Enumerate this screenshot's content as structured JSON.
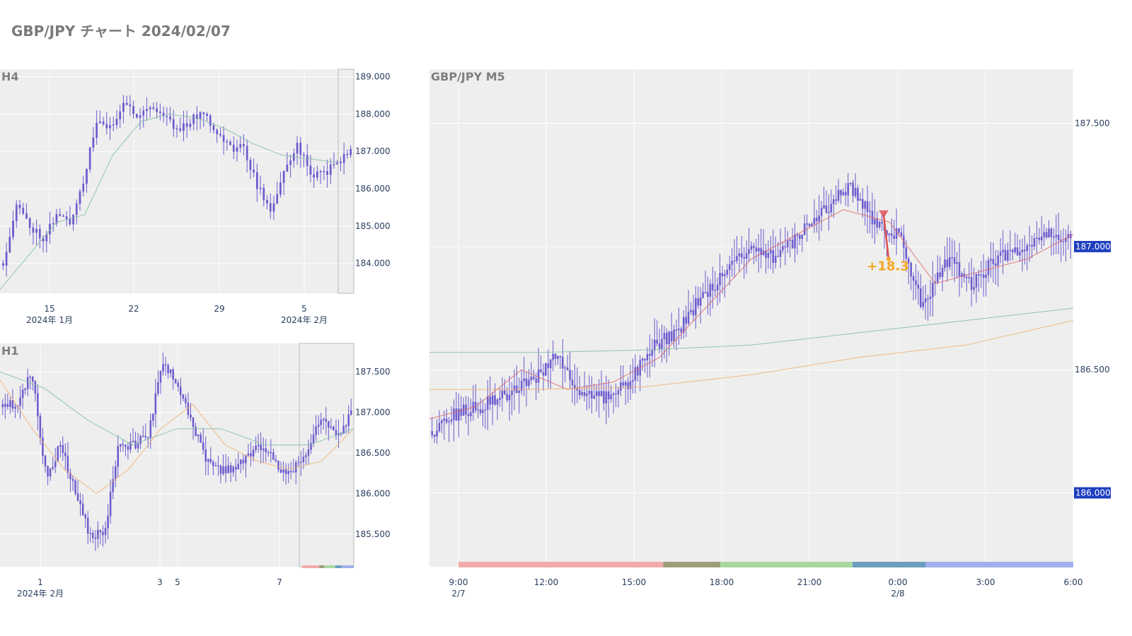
{
  "title": "GBP/JPY チャート 2024/02/07",
  "colors": {
    "candle": "#6a5acd",
    "plot_bg": "#eeeeee",
    "ma_red": "#e06666",
    "ma_green": "#7fbf9f",
    "ma_orange": "#f0b070",
    "highlight_label_bg": "#1e3fbf",
    "signal_red": "#e05050",
    "profit": "#f5a623"
  },
  "sessions": [
    "#f2aaaa",
    "#9e9e7a",
    "#a8d8a0",
    "#6c9ec0",
    "#a0b0ee"
  ],
  "chart_data": [
    {
      "type": "candlestick",
      "title": "H4",
      "ylim": [
        183.2,
        189.2
      ],
      "y_ticks": [
        "189.000",
        "188.000",
        "187.000",
        "186.000",
        "185.000",
        "184.000"
      ],
      "x_ticks": [
        {
          "label": "15",
          "sub": "2024年 1月"
        },
        {
          "label": "22",
          "sub": ""
        },
        {
          "label": "29",
          "sub": ""
        },
        {
          "label": "5",
          "sub": "2024年 2月"
        }
      ],
      "path_anchors": [
        184.0,
        185.6,
        185.0,
        184.7,
        185.3,
        185.1,
        186.2,
        187.8,
        187.6,
        188.3,
        188.0,
        188.2,
        188.0,
        187.6,
        187.8,
        188.1,
        187.5,
        187.1,
        187.1,
        186.1,
        185.4,
        186.4,
        187.2,
        186.4,
        186.4,
        186.7,
        187.0
      ],
      "ma": [
        {
          "color": "ma_green",
          "values": [
            183.3,
            184.2,
            185.1,
            185.3,
            186.9,
            187.8,
            188.0,
            187.9,
            187.6,
            187.2,
            186.9,
            186.8,
            186.7
          ]
        }
      ]
    },
    {
      "type": "candlestick",
      "title": "H1",
      "ylim": [
        185.1,
        187.85
      ],
      "y_ticks": [
        "187.500",
        "187.000",
        "186.500",
        "186.000",
        "185.500"
      ],
      "x_ticks": [
        {
          "label": "1",
          "sub": "2024年 2月"
        },
        {
          "label": "3",
          "sub": ""
        },
        {
          "label": "5",
          "sub": ""
        },
        {
          "label": "7",
          "sub": ""
        }
      ],
      "path_anchors": [
        187.1,
        187.1,
        187.5,
        186.2,
        186.6,
        186.0,
        185.5,
        185.5,
        186.6,
        186.6,
        186.7,
        187.6,
        187.4,
        186.9,
        186.4,
        186.3,
        186.3,
        186.5,
        186.6,
        186.3,
        186.3,
        186.5,
        187.0,
        186.7,
        187.0
      ],
      "ma": [
        {
          "color": "ma_green",
          "values": [
            187.5,
            187.3,
            186.9,
            186.6,
            186.8,
            186.8,
            186.6,
            186.6,
            186.8
          ]
        },
        {
          "color": "ma_orange",
          "values": [
            187.4,
            186.8,
            186.3,
            186.0,
            186.3,
            186.8,
            187.1,
            186.6,
            186.4,
            186.3,
            186.4,
            186.8
          ]
        }
      ]
    },
    {
      "type": "candlestick",
      "title": "GBP/JPY M5",
      "ylim": [
        185.7,
        187.72
      ],
      "y_ticks": [
        "187.500",
        "187.000",
        "186.500",
        "186.000"
      ],
      "highlight_labels": [
        "187.000",
        "186.000"
      ],
      "x_ticks": [
        {
          "label": "9:00",
          "sub": "2/7"
        },
        {
          "label": "12:00",
          "sub": ""
        },
        {
          "label": "15:00",
          "sub": ""
        },
        {
          "label": "18:00",
          "sub": ""
        },
        {
          "label": "21:00",
          "sub": ""
        },
        {
          "label": "0:00",
          "sub": "2/8"
        },
        {
          "label": "3:00",
          "sub": ""
        },
        {
          "label": "6:00",
          "sub": ""
        }
      ],
      "path_anchors": [
        186.25,
        186.32,
        186.35,
        186.4,
        186.45,
        186.55,
        186.42,
        186.38,
        186.45,
        186.6,
        186.65,
        186.8,
        186.9,
        187.0,
        186.95,
        187.05,
        187.15,
        187.25,
        187.1,
        187.05,
        186.75,
        186.95,
        186.85,
        186.95,
        187.0,
        187.05,
        187.05
      ],
      "ma": [
        {
          "color": "ma_red",
          "values": [
            186.3,
            186.35,
            186.5,
            186.42,
            186.45,
            186.55,
            186.75,
            186.95,
            187.05,
            187.15,
            187.1,
            186.85,
            186.9,
            186.95,
            187.05
          ]
        },
        {
          "color": "ma_green",
          "values": [
            186.57,
            186.57,
            186.58,
            186.6,
            186.65,
            186.7,
            186.75
          ]
        },
        {
          "color": "ma_orange",
          "values": [
            186.42,
            186.42,
            186.43,
            186.48,
            186.55,
            186.6,
            186.7
          ]
        }
      ],
      "signal": {
        "entry_price": 187.13,
        "exit_price": 186.95,
        "label": "+18.3"
      }
    }
  ]
}
